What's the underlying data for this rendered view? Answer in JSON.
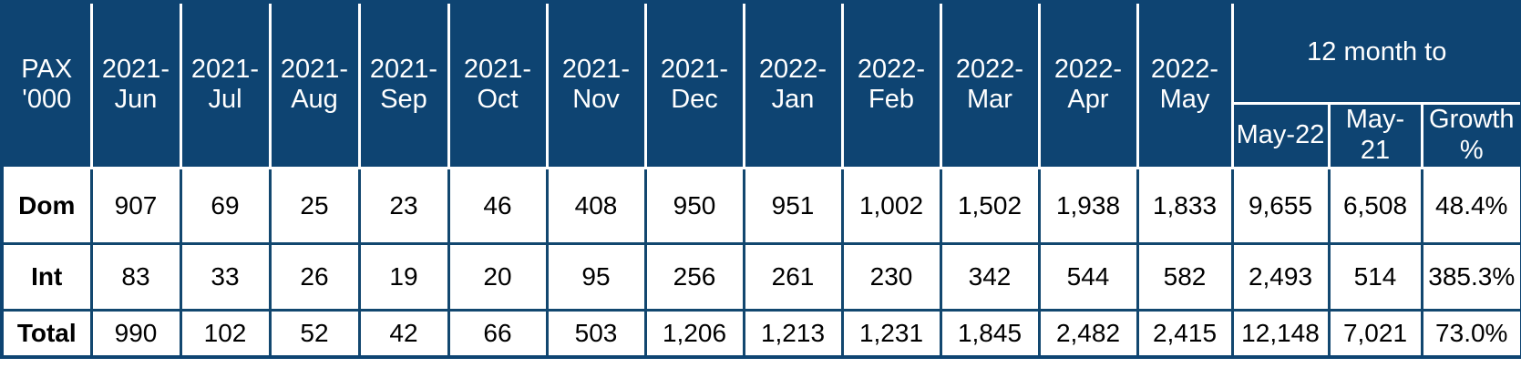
{
  "colors": {
    "header_bg": "#0e4472",
    "grid_line": "#12476f",
    "header_text": "#ffffff",
    "cell_text": "#000000"
  },
  "table_ui": {
    "corner": "PAX '000",
    "months": [
      "2021-Jun",
      "2021-Jul",
      "2021-Aug",
      "2021-Sep",
      "2021-Oct",
      "2021-Nov",
      "2021-Dec",
      "2022-Jan",
      "2022-Feb",
      "2022-Mar",
      "2022-Apr",
      "2022-May"
    ],
    "span12": "12 month to",
    "subs": [
      "May-22",
      "May-21",
      "Growth %"
    ],
    "rows": [
      {
        "label": "Dom",
        "cells": [
          "907",
          "69",
          "25",
          "23",
          "46",
          "408",
          "950",
          "951",
          "1,002",
          "1,502",
          "1,938",
          "1,833"
        ],
        "may22": "9,655",
        "may21": "6,508",
        "growth": "48.4%"
      },
      {
        "label": "Int",
        "cells": [
          "83",
          "33",
          "26",
          "19",
          "20",
          "95",
          "256",
          "261",
          "230",
          "342",
          "544",
          "582"
        ],
        "may22": "2,493",
        "may21": "514",
        "growth": "385.3%"
      },
      {
        "label": "Total",
        "cells": [
          "990",
          "102",
          "52",
          "42",
          "66",
          "503",
          "1,206",
          "1,213",
          "1,231",
          "1,845",
          "2,482",
          "2,415"
        ],
        "may22": "12,148",
        "may21": "7,021",
        "growth": "73.0%"
      }
    ]
  },
  "chart_data": {
    "type": "table",
    "title": "PAX '000",
    "unit": "passengers in thousands",
    "categories": [
      "2021-Jun",
      "2021-Jul",
      "2021-Aug",
      "2021-Sep",
      "2021-Oct",
      "2021-Nov",
      "2021-Dec",
      "2022-Jan",
      "2022-Feb",
      "2022-Mar",
      "2022-Apr",
      "2022-May"
    ],
    "column_group": {
      "label": "12 month to",
      "columns": [
        "May-22",
        "May-21",
        "Growth %"
      ]
    },
    "series": [
      {
        "name": "Dom",
        "values": [
          907,
          69,
          25,
          23,
          46,
          408,
          950,
          951,
          1002,
          1502,
          1938,
          1833
        ],
        "twelve_mo_may22": 9655,
        "twelve_mo_may21": 6508,
        "growth_pct": 48.4
      },
      {
        "name": "Int",
        "values": [
          83,
          33,
          26,
          19,
          20,
          95,
          256,
          261,
          230,
          342,
          544,
          582
        ],
        "twelve_mo_may22": 2493,
        "twelve_mo_may21": 514,
        "growth_pct": 385.3
      },
      {
        "name": "Total",
        "values": [
          990,
          102,
          52,
          42,
          66,
          503,
          1206,
          1213,
          1231,
          1845,
          2482,
          2415
        ],
        "twelve_mo_may22": 12148,
        "twelve_mo_may21": 7021,
        "growth_pct": 73.0
      }
    ]
  }
}
